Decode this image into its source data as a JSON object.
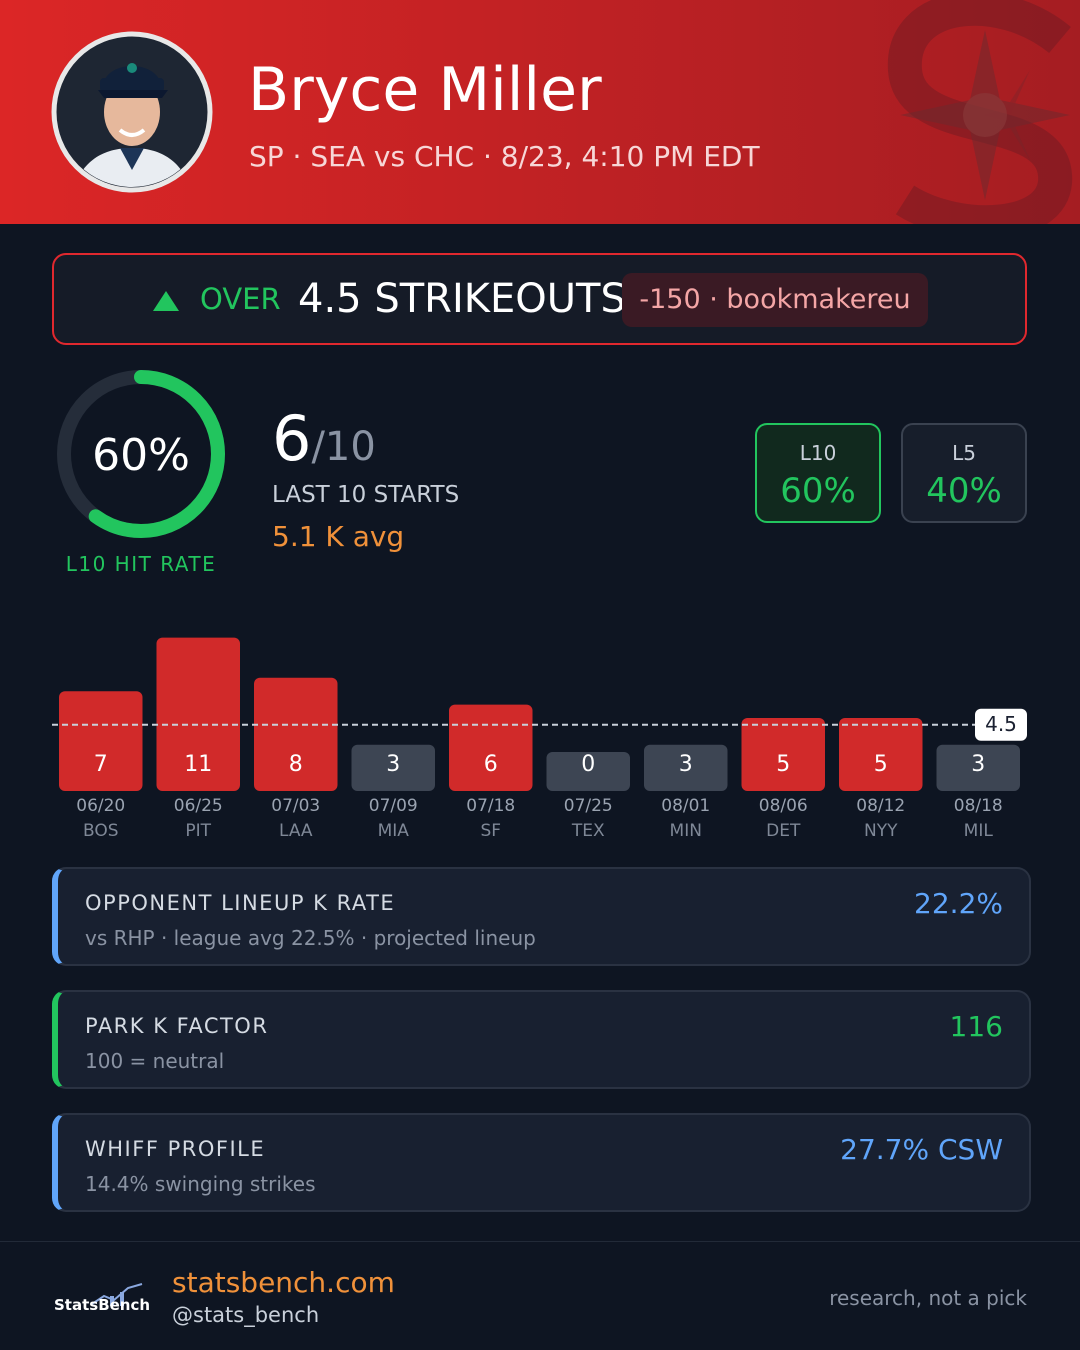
{
  "header": {
    "name": "Bryce Miller",
    "subtitle": "SP · SEA vs CHC · 8/23, 4:10 PM EDT"
  },
  "prop": {
    "direction": "OVER",
    "line": "4.5 STRIKEOUTS",
    "odds": "-150 · bookmakereu"
  },
  "hit_rate": {
    "value": 60,
    "label": "60%",
    "caption": "L10 HIT RATE",
    "color": "#22c55e"
  },
  "summary": {
    "hits": "6",
    "of": "/10",
    "caption": "LAST 10 STARTS",
    "average": "5.1 K avg"
  },
  "splits": [
    {
      "label": "L10",
      "value": "60%"
    },
    {
      "label": "L5",
      "value": "40%"
    }
  ],
  "chart_data": {
    "type": "bar",
    "categories": [
      "06/20",
      "06/25",
      "07/03",
      "07/09",
      "07/18",
      "07/25",
      "08/01",
      "08/06",
      "08/12",
      "08/18"
    ],
    "opponents": [
      "BOS",
      "PIT",
      "LAA",
      "MIA",
      "SF",
      "TEX",
      "MIN",
      "DET",
      "NYY",
      "MIL"
    ],
    "values": [
      7,
      11,
      8,
      3,
      6,
      0,
      3,
      5,
      5,
      3
    ],
    "threshold": 4.5,
    "over_color": "#d12a2a",
    "under_color": "#3d4553"
  },
  "cards": [
    {
      "title": "OPPONENT LINEUP K RATE",
      "subtitle": "vs RHP · league avg 22.5% · projected lineup",
      "value": "22.2%",
      "accent": "#60a5fa"
    },
    {
      "title": "PARK K FACTOR",
      "subtitle": "100 = neutral",
      "value": "116",
      "accent": "#22c55e"
    },
    {
      "title": "WHIFF PROFILE",
      "subtitle": "14.4% swinging strikes",
      "value": "27.7% CSW",
      "accent": "#60a5fa"
    }
  ],
  "footer": {
    "logo": "StatsBench",
    "site": "statsbench.com",
    "handle": "@stats_bench",
    "note": "research, not a pick"
  }
}
